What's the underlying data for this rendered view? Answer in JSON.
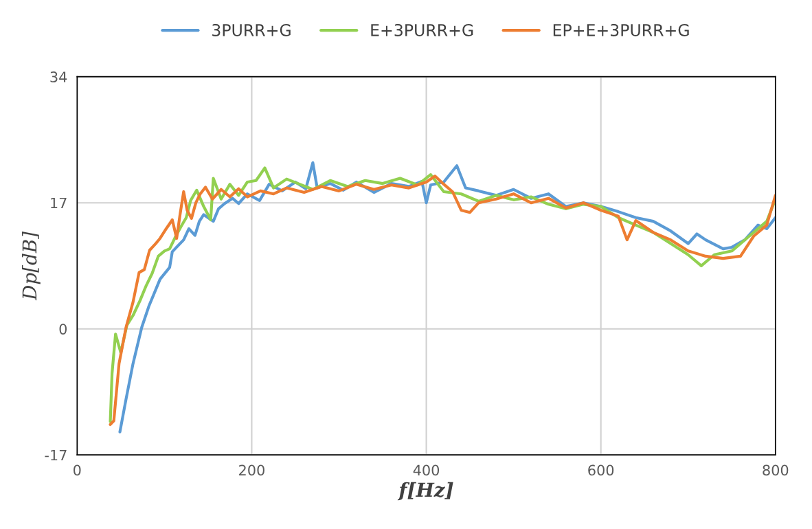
{
  "chart_data": {
    "type": "line",
    "xlabel": "f[Hz]",
    "ylabel": "Dp[dB]",
    "xlim": [
      0,
      800
    ],
    "xticks": [
      0,
      200,
      400,
      600,
      800
    ],
    "ylim": [
      -17,
      34
    ],
    "yticks": [
      -17,
      0,
      17,
      34
    ],
    "grid": true,
    "legend": "top",
    "marker": "none",
    "line_style": "solid",
    "series": [
      {
        "name": "3PURR+G",
        "color": "#5b9bd5",
        "x": [
          49,
          56,
          64,
          74,
          82,
          95,
          106,
          109,
          122,
          128,
          135,
          140,
          145,
          156,
          162,
          169,
          178,
          185,
          195,
          209,
          220,
          235,
          250,
          262,
          270,
          275,
          290,
          305,
          320,
          340,
          360,
          380,
          395,
          400,
          405,
          420,
          435,
          445,
          460,
          480,
          500,
          520,
          540,
          560,
          580,
          600,
          620,
          640,
          660,
          680,
          700,
          710,
          720,
          740,
          750,
          765,
          780,
          790,
          800
        ],
        "values": [
          -13.9,
          -9.5,
          -4.7,
          0.2,
          3.0,
          6.7,
          8.3,
          10.4,
          12.0,
          13.5,
          12.6,
          14.5,
          15.4,
          14.5,
          16.2,
          16.9,
          17.6,
          16.9,
          18.2,
          17.3,
          19.5,
          18.6,
          19.8,
          18.9,
          22.4,
          19.0,
          19.6,
          18.7,
          19.8,
          18.4,
          19.6,
          19.2,
          19.9,
          17.0,
          19.4,
          19.8,
          22.0,
          19.0,
          18.6,
          18.0,
          18.8,
          17.6,
          18.2,
          16.5,
          17.0,
          16.5,
          15.8,
          15.0,
          14.5,
          13.2,
          11.5,
          12.8,
          12.0,
          10.8,
          11.0,
          12.0,
          14.0,
          13.5,
          15.0
        ]
      },
      {
        "name": "E+3PURR+G",
        "color": "#92d050",
        "x": [
          38,
          40,
          44,
          50,
          57,
          64,
          72,
          79,
          86,
          93,
          100,
          106,
          113,
          119,
          125,
          130,
          137,
          145,
          153,
          156,
          165,
          175,
          185,
          195,
          205,
          215,
          225,
          240,
          255,
          270,
          290,
          310,
          330,
          350,
          370,
          390,
          405,
          420,
          440,
          460,
          480,
          500,
          520,
          540,
          560,
          580,
          600,
          620,
          640,
          660,
          680,
          700,
          715,
          730,
          750,
          770,
          790,
          800
        ],
        "values": [
          -12.5,
          -6.0,
          -0.7,
          -3.2,
          0.5,
          1.8,
          3.8,
          5.8,
          7.5,
          9.8,
          10.5,
          10.8,
          12.5,
          13.8,
          15.0,
          17.3,
          18.7,
          16.5,
          14.7,
          20.3,
          17.5,
          19.5,
          18.0,
          19.8,
          20.0,
          21.7,
          19.0,
          20.2,
          19.5,
          18.8,
          20.0,
          19.2,
          20.0,
          19.6,
          20.3,
          19.4,
          20.8,
          18.5,
          18.2,
          17.2,
          18.0,
          17.4,
          17.8,
          16.8,
          16.2,
          16.8,
          16.5,
          15.0,
          14.0,
          13.0,
          11.5,
          10.0,
          8.5,
          10.0,
          10.5,
          12.5,
          14.5,
          17.5
        ]
      },
      {
        "name": "EP+E+3PURR+G",
        "color": "#ed7d31",
        "x": [
          38,
          42,
          48,
          56,
          64,
          71,
          77,
          83,
          90,
          95,
          102,
          109,
          114,
          118,
          122,
          126,
          131,
          136,
          141,
          147,
          155,
          165,
          175,
          185,
          195,
          210,
          225,
          240,
          260,
          280,
          300,
          320,
          340,
          360,
          380,
          400,
          410,
          420,
          430,
          440,
          450,
          460,
          480,
          500,
          520,
          540,
          560,
          580,
          600,
          620,
          630,
          640,
          660,
          680,
          700,
          720,
          740,
          760,
          775,
          790,
          800
        ],
        "values": [
          -12.9,
          -12.4,
          -4.7,
          0.2,
          3.6,
          7.6,
          8.0,
          10.6,
          11.5,
          12.2,
          13.5,
          14.7,
          12.2,
          15.5,
          18.5,
          16.0,
          14.9,
          17.0,
          18.2,
          19.1,
          17.5,
          18.8,
          17.8,
          18.9,
          17.8,
          18.6,
          18.2,
          19.0,
          18.4,
          19.2,
          18.6,
          19.5,
          18.8,
          19.4,
          19.0,
          19.8,
          20.6,
          19.5,
          18.5,
          16.0,
          15.7,
          17.0,
          17.5,
          18.2,
          17.0,
          17.6,
          16.3,
          17.0,
          16.0,
          15.2,
          12.0,
          14.6,
          13.0,
          12.0,
          10.5,
          9.8,
          9.5,
          9.8,
          12.5,
          14.0,
          18.0
        ]
      }
    ]
  }
}
